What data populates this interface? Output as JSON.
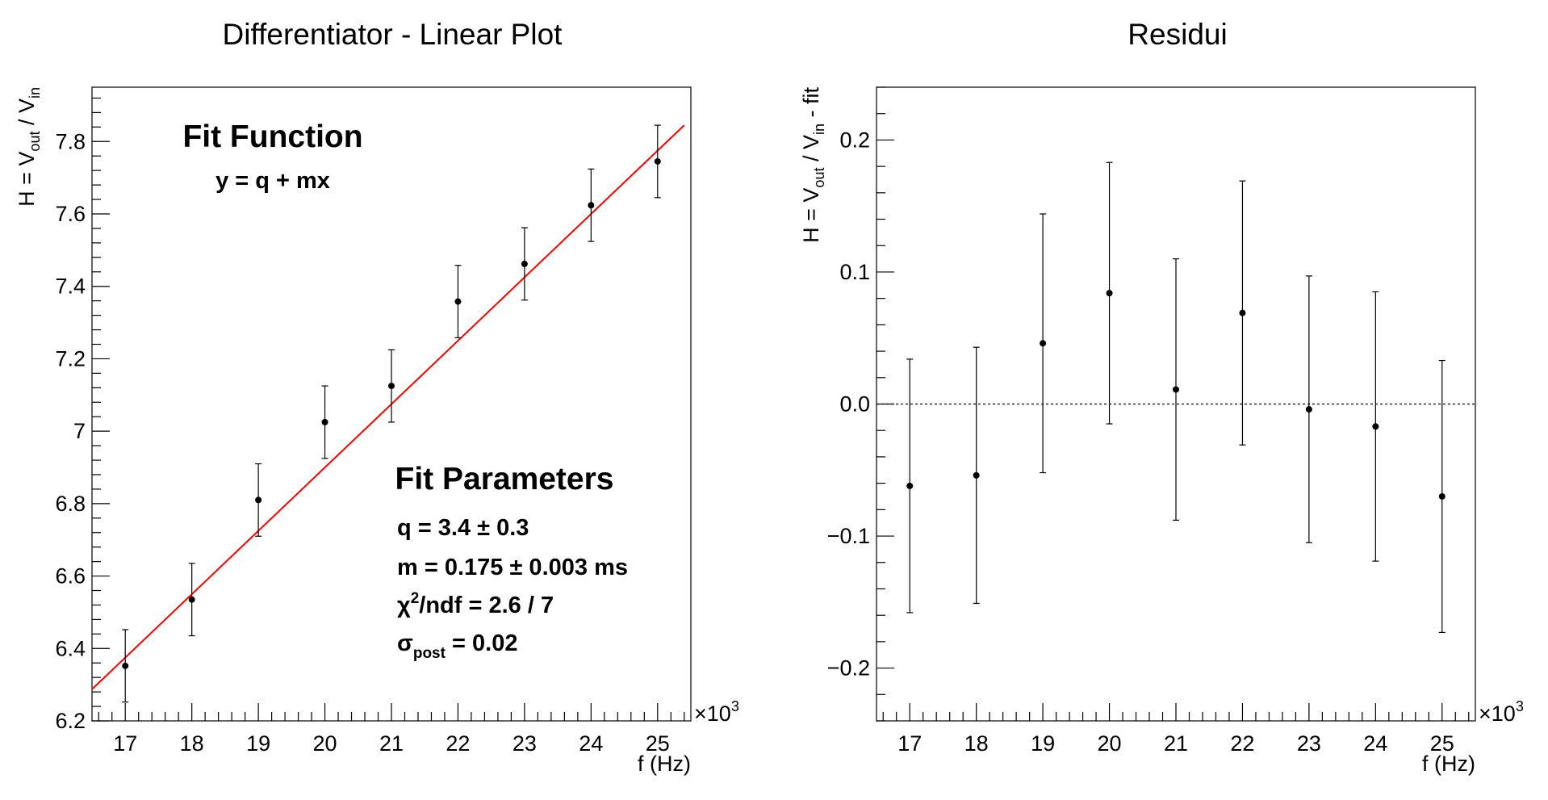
{
  "chart_data": [
    {
      "type": "scatter",
      "title": "Differentiator - Linear Plot",
      "xlabel": "f (Hz)",
      "ylabel": {
        "main": "H = V",
        "sub1": "out",
        "mid": " / V",
        "sub2": "in"
      },
      "x_multiplier": {
        "base": "×10",
        "exp": "3"
      },
      "xlim": [
        16.5,
        25.5
      ],
      "ylim": [
        6.2,
        7.95
      ],
      "xticks": [
        17,
        18,
        19,
        20,
        21,
        22,
        23,
        24,
        25
      ],
      "yticks": [
        6.2,
        6.4,
        6.6,
        6.8,
        7.0,
        7.2,
        7.4,
        7.6,
        7.8
      ],
      "ytick_labels": [
        "6.2",
        "6.4",
        "6.6",
        "6.8",
        "7",
        "7.2",
        "7.4",
        "7.6",
        "7.8"
      ],
      "series": [
        {
          "x": [
            17,
            18,
            19,
            20,
            21,
            22,
            23,
            24,
            25
          ],
          "y": [
            6.352,
            6.535,
            6.81,
            7.025,
            7.125,
            7.358,
            7.462,
            7.624,
            7.745
          ],
          "yerr": [
            0.1,
            0.1,
            0.1,
            0.1,
            0.1,
            0.1,
            0.1,
            0.1,
            0.1
          ]
        }
      ],
      "fit": {
        "q": 3.4,
        "m": 0.175,
        "color": "#ff0000"
      },
      "annotations": {
        "fit_function_title": "Fit Function",
        "fit_function_formula": "y = q + mx",
        "fit_parameters_title": "Fit Parameters",
        "q_line": "q = 3.4 ± 0.3",
        "m_line": "m = 0.175 ± 0.003 ms",
        "chi2_line": {
          "chi": "χ",
          "sup": "2",
          "rest": "/ndf = 2.6 / 7"
        },
        "sigma_line": {
          "sigma": "σ",
          "sub": "post",
          "rest": " = 0.02"
        }
      }
    },
    {
      "type": "scatter",
      "title": "Residui",
      "xlabel": "f (Hz)",
      "ylabel": {
        "main": "H = V",
        "sub1": "out",
        "mid": " / V",
        "sub2": "in",
        "tail": " - fit"
      },
      "x_multiplier": {
        "base": "×10",
        "exp": "3"
      },
      "xlim": [
        16.5,
        25.5
      ],
      "ylim": [
        -0.24,
        0.24
      ],
      "xticks": [
        17,
        18,
        19,
        20,
        21,
        22,
        23,
        24,
        25
      ],
      "yticks": [
        -0.2,
        -0.1,
        0.0,
        0.1,
        0.2
      ],
      "ytick_labels": [
        "−0.2",
        "−0.1",
        "0.0",
        "0.1",
        "0.2"
      ],
      "series": [
        {
          "x": [
            17,
            18,
            19,
            20,
            21,
            22,
            23,
            24,
            25
          ],
          "y": [
            -0.062,
            -0.054,
            0.046,
            0.084,
            0.011,
            0.069,
            -0.004,
            -0.017,
            -0.07
          ],
          "yerr": [
            0.096,
            0.097,
            0.098,
            0.099,
            0.099,
            0.1,
            0.101,
            0.102,
            0.103
          ]
        }
      ],
      "zero_line": true
    }
  ]
}
